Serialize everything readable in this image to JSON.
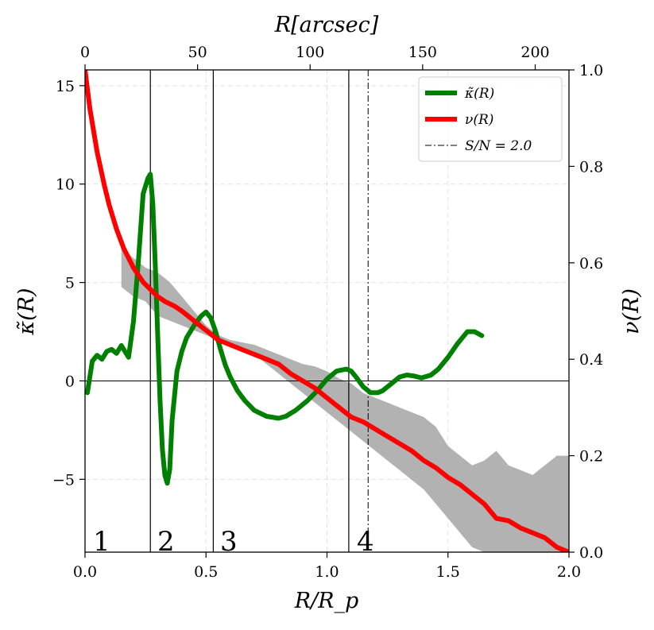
{
  "chart_data": {
    "type": "line",
    "xlabel": "R/R_p",
    "x2label": "R[arcsec]",
    "ylabel": "κ̃(R)",
    "y2label": "ν(R)",
    "xlim": [
      0.0,
      2.0
    ],
    "x2lim": [
      0,
      215
    ],
    "ylim": [
      -8.7,
      15.8
    ],
    "y2lim": [
      0.0,
      1.0
    ],
    "xticks": [
      "0.0",
      "0.5",
      "1.0",
      "1.5",
      "2.0"
    ],
    "x2ticks": [
      "0",
      "50",
      "100",
      "150",
      "200"
    ],
    "yticks": [
      "−5",
      "0",
      "5",
      "10",
      "15"
    ],
    "y2ticks": [
      "0.0",
      "0.2",
      "0.4",
      "0.6",
      "0.8",
      "1.0"
    ],
    "grid": true,
    "legend_position": "top-right",
    "region_labels": [
      "1",
      "2",
      "3",
      "4"
    ],
    "vertical_lines": [
      {
        "x": 0.27,
        "style": "solid"
      },
      {
        "x": 0.53,
        "style": "solid"
      },
      {
        "x": 1.09,
        "style": "solid"
      },
      {
        "x": 1.17,
        "style": "dashdot",
        "label": "S/N = 2.0"
      }
    ],
    "horizontal_line": {
      "y": 0
    },
    "series": [
      {
        "name": "κ̃(R)",
        "axis": "left",
        "color": "#008000",
        "x": [
          0.01,
          0.03,
          0.05,
          0.07,
          0.09,
          0.11,
          0.13,
          0.15,
          0.165,
          0.18,
          0.2,
          0.22,
          0.24,
          0.26,
          0.27,
          0.28,
          0.29,
          0.3,
          0.31,
          0.32,
          0.33,
          0.34,
          0.35,
          0.36,
          0.38,
          0.4,
          0.42,
          0.45,
          0.48,
          0.5,
          0.52,
          0.54,
          0.56,
          0.58,
          0.6,
          0.63,
          0.66,
          0.7,
          0.75,
          0.8,
          0.83,
          0.87,
          0.92,
          0.96,
          1.0,
          1.04,
          1.08,
          1.1,
          1.12,
          1.15,
          1.18,
          1.21,
          1.23,
          1.26,
          1.3,
          1.33,
          1.36,
          1.39,
          1.43,
          1.46,
          1.5,
          1.54,
          1.58,
          1.61,
          1.64
        ],
        "y": [
          -0.6,
          1.0,
          1.3,
          1.1,
          1.5,
          1.6,
          1.4,
          1.8,
          1.5,
          1.2,
          3.0,
          6.0,
          9.5,
          10.3,
          10.5,
          9.0,
          6.0,
          2.5,
          -1.0,
          -3.5,
          -4.8,
          -5.2,
          -4.5,
          -2.0,
          0.5,
          1.5,
          2.2,
          2.8,
          3.3,
          3.5,
          3.2,
          2.5,
          1.6,
          0.8,
          0.2,
          -0.5,
          -1.0,
          -1.5,
          -1.8,
          -1.9,
          -1.8,
          -1.5,
          -1.0,
          -0.5,
          0.1,
          0.5,
          0.6,
          0.5,
          0.2,
          -0.3,
          -0.6,
          -0.6,
          -0.5,
          -0.2,
          0.2,
          0.3,
          0.25,
          0.15,
          0.3,
          0.6,
          1.2,
          1.9,
          2.5,
          2.5,
          2.3
        ]
      },
      {
        "name": "ν(R)",
        "axis": "right",
        "color": "#ff0000",
        "x": [
          0.0,
          0.02,
          0.05,
          0.08,
          0.1,
          0.13,
          0.16,
          0.2,
          0.24,
          0.28,
          0.3,
          0.33,
          0.37,
          0.4,
          0.45,
          0.5,
          0.55,
          0.6,
          0.65,
          0.7,
          0.75,
          0.8,
          0.85,
          0.9,
          0.95,
          1.0,
          1.05,
          1.1,
          1.15,
          1.2,
          1.25,
          1.3,
          1.35,
          1.4,
          1.45,
          1.5,
          1.55,
          1.6,
          1.65,
          1.7,
          1.75,
          1.8,
          1.85,
          1.9,
          1.95,
          2.0
        ],
        "y": [
          1.0,
          0.92,
          0.83,
          0.76,
          0.72,
          0.67,
          0.63,
          0.59,
          0.56,
          0.54,
          0.53,
          0.52,
          0.51,
          0.5,
          0.48,
          0.46,
          0.44,
          0.43,
          0.42,
          0.41,
          0.4,
          0.39,
          0.37,
          0.355,
          0.34,
          0.32,
          0.3,
          0.28,
          0.27,
          0.255,
          0.24,
          0.225,
          0.21,
          0.19,
          0.175,
          0.155,
          0.14,
          0.12,
          0.1,
          0.07,
          0.065,
          0.05,
          0.04,
          0.03,
          0.01,
          0.0
        ]
      }
    ],
    "uncertainty_band": {
      "axis": "right",
      "color": "#aaaaaa",
      "x": [
        0.15,
        0.2,
        0.25,
        0.3,
        0.35,
        0.4,
        0.45,
        0.5,
        0.55,
        0.6,
        0.65,
        0.7,
        0.75,
        0.8,
        0.85,
        0.9,
        0.95,
        1.0,
        1.05,
        1.1,
        1.15,
        1.2,
        1.25,
        1.3,
        1.35,
        1.4,
        1.45,
        1.5,
        1.55,
        1.6,
        1.65,
        1.7,
        1.75,
        1.8,
        1.85,
        1.9,
        1.95,
        2.0
      ],
      "upper": [
        0.63,
        0.61,
        0.59,
        0.58,
        0.56,
        0.53,
        0.5,
        0.47,
        0.45,
        0.44,
        0.435,
        0.43,
        0.42,
        0.41,
        0.4,
        0.39,
        0.385,
        0.375,
        0.36,
        0.35,
        0.33,
        0.32,
        0.31,
        0.3,
        0.29,
        0.28,
        0.26,
        0.22,
        0.2,
        0.18,
        0.19,
        0.21,
        0.18,
        0.17,
        0.16,
        0.18,
        0.2,
        0.2
      ],
      "lower": [
        0.55,
        0.53,
        0.52,
        0.49,
        0.48,
        0.47,
        0.46,
        0.45,
        0.44,
        0.43,
        0.42,
        0.41,
        0.39,
        0.37,
        0.35,
        0.33,
        0.31,
        0.29,
        0.27,
        0.25,
        0.23,
        0.21,
        0.19,
        0.17,
        0.15,
        0.13,
        0.1,
        0.07,
        0.04,
        0.01,
        0.0,
        0.0,
        0.0,
        0.0,
        0.0,
        0.0,
        0.0,
        0.0
      ]
    }
  }
}
